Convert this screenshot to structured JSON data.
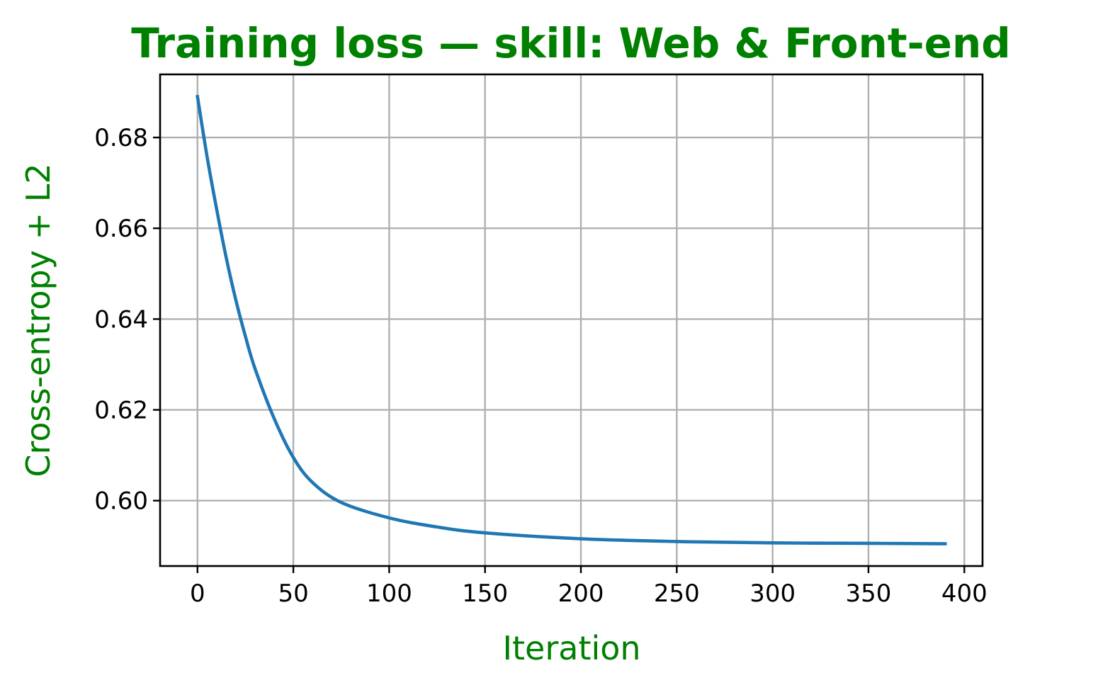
{
  "colors": {
    "title": "#008000",
    "axis_label": "#008000",
    "series_line": "#1f77b4",
    "grid": "#b0b0b0",
    "frame": "#000000"
  },
  "chart_data": {
    "type": "line",
    "title": "Training loss — skill: Web & Front-end",
    "xlabel": "Iteration",
    "ylabel": "Cross-entropy + L2",
    "xlim": [
      -19.5,
      409.5
    ],
    "ylim": [
      0.5856,
      0.6939
    ],
    "x_ticks": [
      0,
      50,
      100,
      150,
      200,
      250,
      300,
      350,
      400
    ],
    "x_tick_labels": [
      "0",
      "50",
      "100",
      "150",
      "200",
      "250",
      "300",
      "350",
      "400"
    ],
    "y_ticks": [
      0.6,
      0.62,
      0.64,
      0.66,
      0.68
    ],
    "y_tick_labels": [
      "0.60",
      "0.62",
      "0.64",
      "0.66",
      "0.68"
    ],
    "grid": true,
    "series": [
      {
        "x": [
          0,
          5,
          10,
          15,
          20,
          25,
          30,
          40,
          50,
          60,
          75,
          100,
          125,
          150,
          200,
          250,
          300,
          350,
          390
        ],
        "y": [
          0.689,
          0.6758,
          0.6642,
          0.6535,
          0.6442,
          0.6362,
          0.6291,
          0.6181,
          0.6095,
          0.604,
          0.5996,
          0.5962,
          0.5942,
          0.5929,
          0.5916,
          0.591,
          0.5907,
          0.5906,
          0.5905
        ]
      }
    ]
  }
}
